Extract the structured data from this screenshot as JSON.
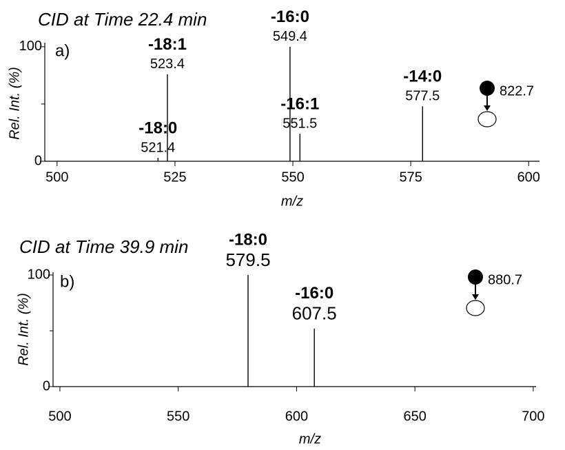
{
  "chart_data": [
    {
      "type": "stem",
      "title": "CID at Time 22.4 min",
      "panel_label": "a)",
      "xlabel": "m/z",
      "ylabel": "Rel. Int. (%)",
      "x": [
        521.4,
        523.4,
        549.4,
        551.5,
        577.5
      ],
      "values": [
        3,
        76,
        100,
        24,
        48
      ],
      "peak_labels": [
        "-18:0",
        "-18:1",
        "-16:0",
        "-16:1",
        "-14:0"
      ],
      "color": "#000000",
      "precursor": 822.7,
      "xlim": [
        497.4,
        602.3
      ],
      "xticks": [
        500,
        525,
        550,
        575,
        600
      ],
      "ylim": [
        0,
        103.5
      ],
      "yticks": [
        0,
        100
      ],
      "yminor_ticks": [
        50
      ]
    },
    {
      "type": "stem",
      "title": "CID at Time 39.9 min",
      "panel_label": "b)",
      "xlabel": "m/z",
      "ylabel": "Rel. Int. (%)",
      "x": [
        579.5,
        607.5
      ],
      "values": [
        100,
        52
      ],
      "peak_labels": [
        "-18:0",
        "-16:0"
      ],
      "color": "#000000",
      "precursor": 880.7,
      "xlim": [
        497.1,
        701.2
      ],
      "xticks": [
        500,
        550,
        600,
        650,
        700
      ],
      "ylim": [
        0,
        102.5
      ],
      "yticks": [
        0,
        100
      ],
      "yminor_ticks": [
        50
      ]
    }
  ]
}
